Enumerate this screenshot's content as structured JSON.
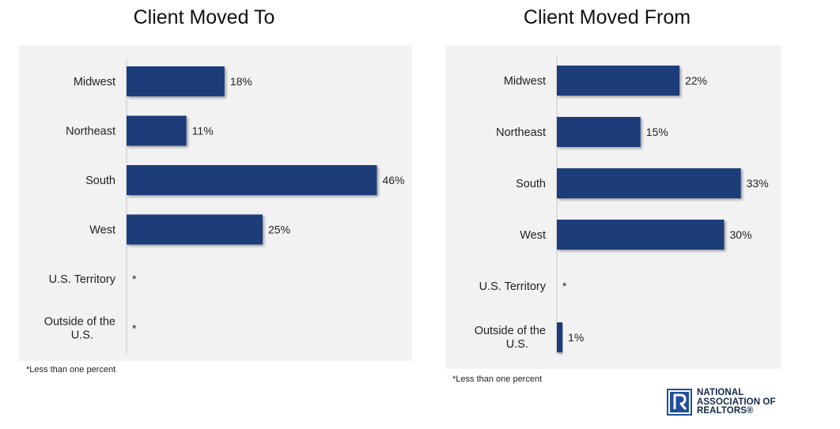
{
  "chart_data": [
    {
      "type": "bar",
      "orientation": "horizontal",
      "title": "Client Moved To",
      "categories": [
        "Midwest",
        "Northeast",
        "South",
        "West",
        "U.S. Territory",
        "Outside of the U.S."
      ],
      "values": [
        18,
        11,
        46,
        25,
        null,
        null
      ],
      "value_labels": [
        "18%",
        "11%",
        "46%",
        "25%",
        "*",
        "*"
      ],
      "xlim": [
        0,
        50
      ],
      "grid": false,
      "footnote": "*Less than one percent"
    },
    {
      "type": "bar",
      "orientation": "horizontal",
      "title": "Client Moved From",
      "categories": [
        "Midwest",
        "Northeast",
        "South",
        "West",
        "U.S. Territory",
        "Outside of the U.S."
      ],
      "values": [
        22,
        15,
        33,
        30,
        null,
        1
      ],
      "value_labels": [
        "22%",
        "15%",
        "33%",
        "30%",
        "*",
        "1%"
      ],
      "xlim": [
        0,
        35
      ],
      "grid": false,
      "footnote": "*Less than one percent"
    }
  ],
  "colors": {
    "bar": "#1f3e7a",
    "panel": "#f2f2f2",
    "axis": "#c8c8c8"
  },
  "logo": {
    "line1": "NATIONAL",
    "line2": "ASSOCIATION OF",
    "line3": "REALTORS®",
    "icon": "realtor-r-logo-icon"
  }
}
